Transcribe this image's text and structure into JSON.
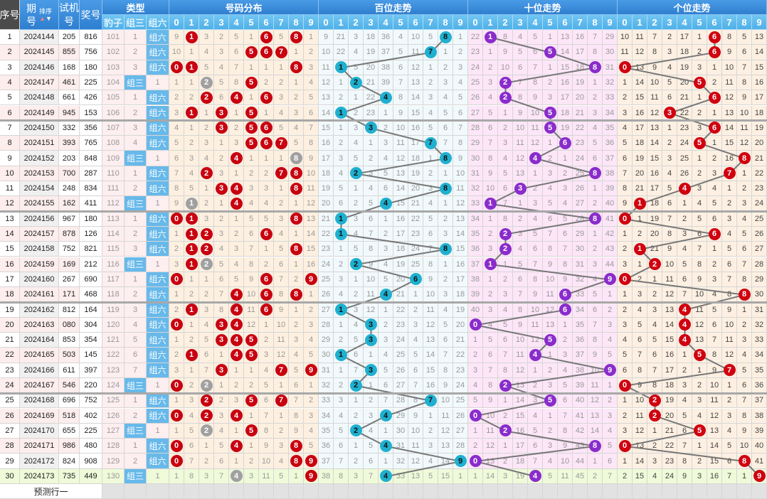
{
  "header": {
    "seq": "序号",
    "issue": "期号",
    "sort": "排序",
    "trial": "试机号",
    "prize": "奖号",
    "type": "类型",
    "baozi": "豹子",
    "zusan": "组三",
    "zuliu": "组六",
    "dist": "号码分布",
    "bai": "百位走势",
    "shi": "十位走势",
    "ge": "个位走势",
    "digits": [
      "0",
      "1",
      "2",
      "3",
      "4",
      "5",
      "6",
      "7",
      "8",
      "9"
    ]
  },
  "rows": [
    {
      "seq": "1",
      "issue": "2024144",
      "trial": "205",
      "prize": "816"
    },
    {
      "seq": "2",
      "issue": "2024145",
      "trial": "855",
      "prize": "756"
    },
    {
      "seq": "3",
      "issue": "2024146",
      "trial": "168",
      "prize": "180"
    },
    {
      "seq": "4",
      "issue": "2024147",
      "trial": "461",
      "prize": "225"
    },
    {
      "seq": "5",
      "issue": "2024148",
      "trial": "661",
      "prize": "426"
    },
    {
      "seq": "6",
      "issue": "2024149",
      "trial": "945",
      "prize": "153"
    },
    {
      "seq": "7",
      "issue": "2024150",
      "trial": "332",
      "prize": "356"
    },
    {
      "seq": "8",
      "issue": "2024151",
      "trial": "393",
      "prize": "765"
    },
    {
      "seq": "9",
      "issue": "2024152",
      "trial": "203",
      "prize": "848"
    },
    {
      "seq": "10",
      "issue": "2024153",
      "trial": "700",
      "prize": "287"
    },
    {
      "seq": "11",
      "issue": "2024154",
      "trial": "248",
      "prize": "834"
    },
    {
      "seq": "12",
      "issue": "2024155",
      "trial": "162",
      "prize": "411"
    },
    {
      "seq": "13",
      "issue": "2024156",
      "trial": "967",
      "prize": "180"
    },
    {
      "seq": "14",
      "issue": "2024157",
      "trial": "878",
      "prize": "126"
    },
    {
      "seq": "15",
      "issue": "2024158",
      "trial": "752",
      "prize": "821"
    },
    {
      "seq": "16",
      "issue": "2024159",
      "trial": "169",
      "prize": "212"
    },
    {
      "seq": "17",
      "issue": "2024160",
      "trial": "267",
      "prize": "690"
    },
    {
      "seq": "18",
      "issue": "2024161",
      "trial": "171",
      "prize": "468"
    },
    {
      "seq": "19",
      "issue": "2024162",
      "trial": "812",
      "prize": "164"
    },
    {
      "seq": "20",
      "issue": "2024163",
      "trial": "080",
      "prize": "304"
    },
    {
      "seq": "21",
      "issue": "2024164",
      "trial": "853",
      "prize": "354"
    },
    {
      "seq": "22",
      "issue": "2024165",
      "trial": "503",
      "prize": "145"
    },
    {
      "seq": "23",
      "issue": "2024166",
      "trial": "611",
      "prize": "397"
    },
    {
      "seq": "24",
      "issue": "2024167",
      "trial": "546",
      "prize": "220"
    },
    {
      "seq": "25",
      "issue": "2024168",
      "trial": "696",
      "prize": "752"
    },
    {
      "seq": "26",
      "issue": "2024169",
      "trial": "518",
      "prize": "402"
    },
    {
      "seq": "27",
      "issue": "2024170",
      "trial": "655",
      "prize": "225"
    },
    {
      "seq": "28",
      "issue": "2024171",
      "trial": "986",
      "prize": "480"
    },
    {
      "seq": "29",
      "issue": "2024172",
      "trial": "824",
      "prize": "908"
    },
    {
      "seq": "30",
      "issue": "2024173",
      "trial": "735",
      "prize": "449"
    }
  ],
  "first_row_omission": {
    "baozi": 101,
    "zusan": 1,
    "dist": [
      9,
      0,
      3,
      2,
      5,
      1,
      0,
      5,
      0,
      1
    ],
    "bai": [
      9,
      21,
      3,
      18,
      36,
      4,
      10,
      5,
      0,
      1
    ],
    "shi": [
      22,
      0,
      8,
      4,
      5,
      1,
      13,
      16,
      7,
      29
    ],
    "ge": [
      10,
      11,
      7,
      2,
      17,
      1,
      0,
      8,
      5,
      13
    ]
  },
  "footer": {
    "label": "预测行一"
  },
  "colors": {
    "dist_ball": "#c8000f",
    "dup_ball": "#a0a0a0",
    "bai_ball": "#1fb0d0",
    "shi_ball": "#8a2ccc",
    "ge_ball": "#d0000f",
    "dist_bg": "#fdf0e0",
    "bai_bg": "#f1f9fc",
    "shi_bg": "#fde6f8",
    "ge_bg": "#fdf0e2",
    "latest_bg": "#effad9",
    "line": "#777777"
  }
}
